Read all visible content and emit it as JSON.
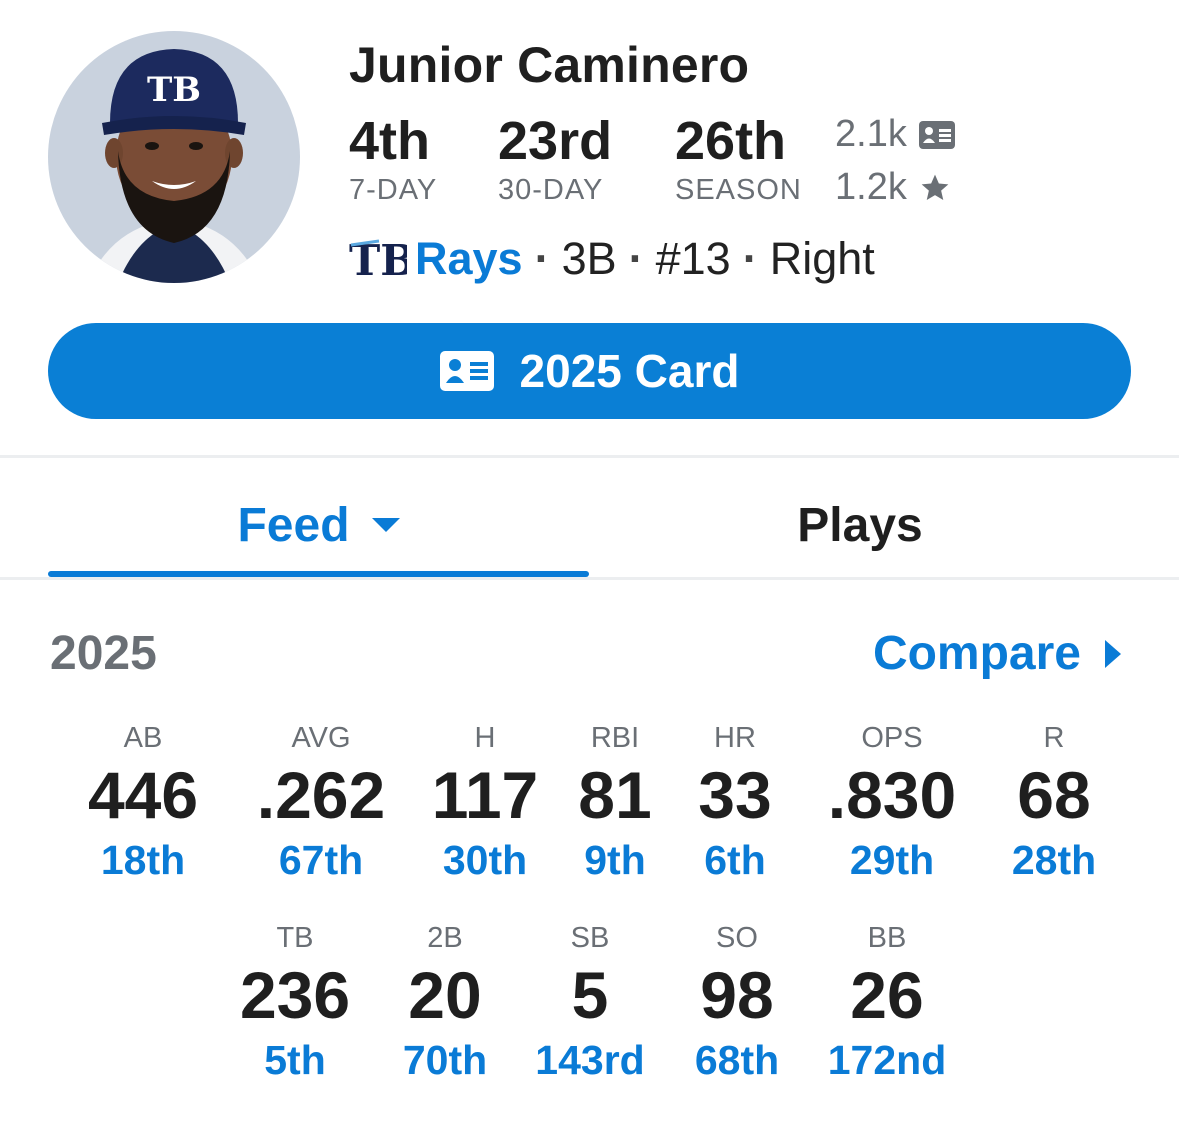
{
  "player": {
    "name": "Junior Caminero",
    "ranks": [
      {
        "value": "4th",
        "label": "7-DAY"
      },
      {
        "value": "23rd",
        "label": "30-DAY"
      },
      {
        "value": "26th",
        "label": "SEASON"
      }
    ],
    "followers": "2.1k",
    "favorites": "1.2k",
    "team": "Rays",
    "position": "3B",
    "number": "#13",
    "bats": "Right"
  },
  "card_button": {
    "label": "2025 Card"
  },
  "tabs": [
    {
      "label": "Feed",
      "active": true
    },
    {
      "label": "Plays",
      "active": false
    }
  ],
  "season": {
    "year": "2025",
    "compare_label": "Compare"
  },
  "stats_row1": [
    {
      "label": "AB",
      "value": "446",
      "rank": "18th"
    },
    {
      "label": "AVG",
      "value": ".262",
      "rank": "67th"
    },
    {
      "label": "H",
      "value": "117",
      "rank": "30th"
    },
    {
      "label": "RBI",
      "value": "81",
      "rank": "9th"
    },
    {
      "label": "HR",
      "value": "33",
      "rank": "6th"
    },
    {
      "label": "OPS",
      "value": ".830",
      "rank": "29th"
    },
    {
      "label": "R",
      "value": "68",
      "rank": "28th"
    }
  ],
  "stats_row2": [
    {
      "label": "TB",
      "value": "236",
      "rank": "5th"
    },
    {
      "label": "2B",
      "value": "20",
      "rank": "70th"
    },
    {
      "label": "SB",
      "value": "5",
      "rank": "143rd"
    },
    {
      "label": "SO",
      "value": "98",
      "rank": "68th"
    },
    {
      "label": "BB",
      "value": "26",
      "rank": "172nd"
    }
  ],
  "colors": {
    "accent": "#0a7bd6",
    "button": "#0a7fd5",
    "text": "#1f1f1f",
    "muted": "#6a6f75"
  }
}
